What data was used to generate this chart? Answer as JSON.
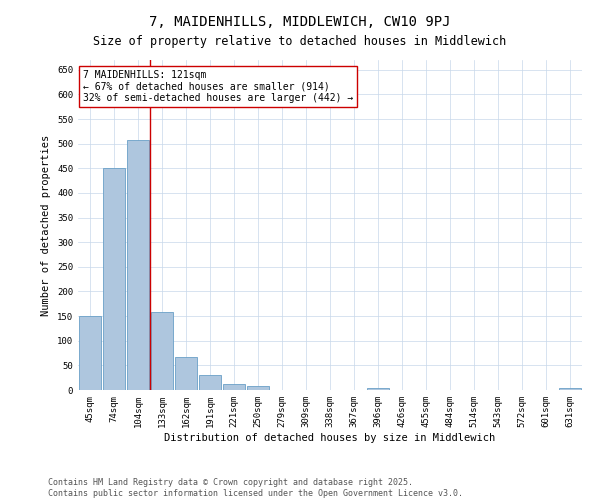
{
  "title": "7, MAIDENHILLS, MIDDLEWICH, CW10 9PJ",
  "subtitle": "Size of property relative to detached houses in Middlewich",
  "xlabel": "Distribution of detached houses by size in Middlewich",
  "ylabel": "Number of detached properties",
  "categories": [
    "45sqm",
    "74sqm",
    "104sqm",
    "133sqm",
    "162sqm",
    "191sqm",
    "221sqm",
    "250sqm",
    "279sqm",
    "309sqm",
    "338sqm",
    "367sqm",
    "396sqm",
    "426sqm",
    "455sqm",
    "484sqm",
    "514sqm",
    "543sqm",
    "572sqm",
    "601sqm",
    "631sqm"
  ],
  "values": [
    150,
    450,
    507,
    158,
    67,
    30,
    13,
    8,
    0,
    0,
    0,
    0,
    5,
    0,
    0,
    0,
    0,
    0,
    0,
    0,
    5
  ],
  "bar_color": "#aec6de",
  "bar_edge_color": "#6aa0c7",
  "background_color": "#ffffff",
  "grid_color": "#c8d8ea",
  "annotation_text": "7 MAIDENHILLS: 121sqm\n← 67% of detached houses are smaller (914)\n32% of semi-detached houses are larger (442) →",
  "annotation_box_color": "#ffffff",
  "annotation_box_edge": "#cc0000",
  "vline_x": 2.5,
  "vline_color": "#cc0000",
  "ylim": [
    0,
    670
  ],
  "yticks": [
    0,
    50,
    100,
    150,
    200,
    250,
    300,
    350,
    400,
    450,
    500,
    550,
    600,
    650
  ],
  "footer_line1": "Contains HM Land Registry data © Crown copyright and database right 2025.",
  "footer_line2": "Contains public sector information licensed under the Open Government Licence v3.0.",
  "title_fontsize": 10,
  "subtitle_fontsize": 8.5,
  "xlabel_fontsize": 7.5,
  "ylabel_fontsize": 7.5,
  "tick_fontsize": 6.5,
  "annotation_fontsize": 7,
  "footer_fontsize": 6
}
